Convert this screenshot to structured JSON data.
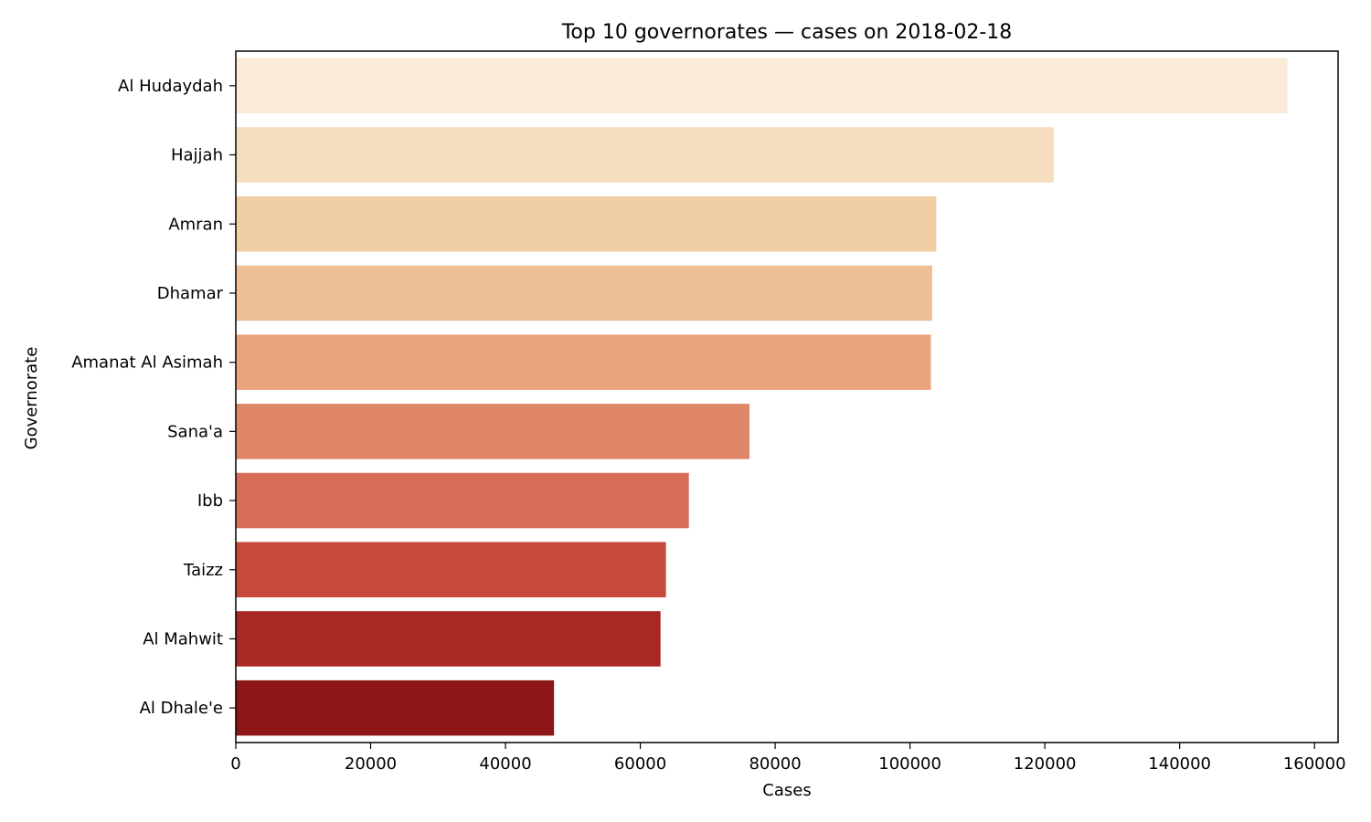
{
  "chart_data": {
    "type": "bar",
    "orientation": "horizontal",
    "title": "Top 10 governorates — cases on 2018-02-18",
    "xlabel": "Cases",
    "ylabel": "Governorate",
    "xlim": [
      0,
      163500
    ],
    "xticks": [
      0,
      20000,
      40000,
      60000,
      80000,
      100000,
      120000,
      140000,
      160000
    ],
    "grid": false,
    "categories": [
      "Al Hudaydah",
      "Hajjah",
      "Amran",
      "Dhamar",
      "Amanat Al Asimah",
      "Sana'a",
      "Ibb",
      "Taizz",
      "Al Mahwit",
      "Al Dhale'e"
    ],
    "values": [
      156000,
      121300,
      103900,
      103300,
      103100,
      76200,
      67200,
      63800,
      63000,
      47200
    ],
    "colors": [
      "#faebd9",
      "#f5ddbd",
      "#f0cfa5",
      "#eebf97",
      "#eaa47d",
      "#e0876a",
      "#d86d5a",
      "#c6493b",
      "#a82824",
      "#8e1616"
    ]
  }
}
